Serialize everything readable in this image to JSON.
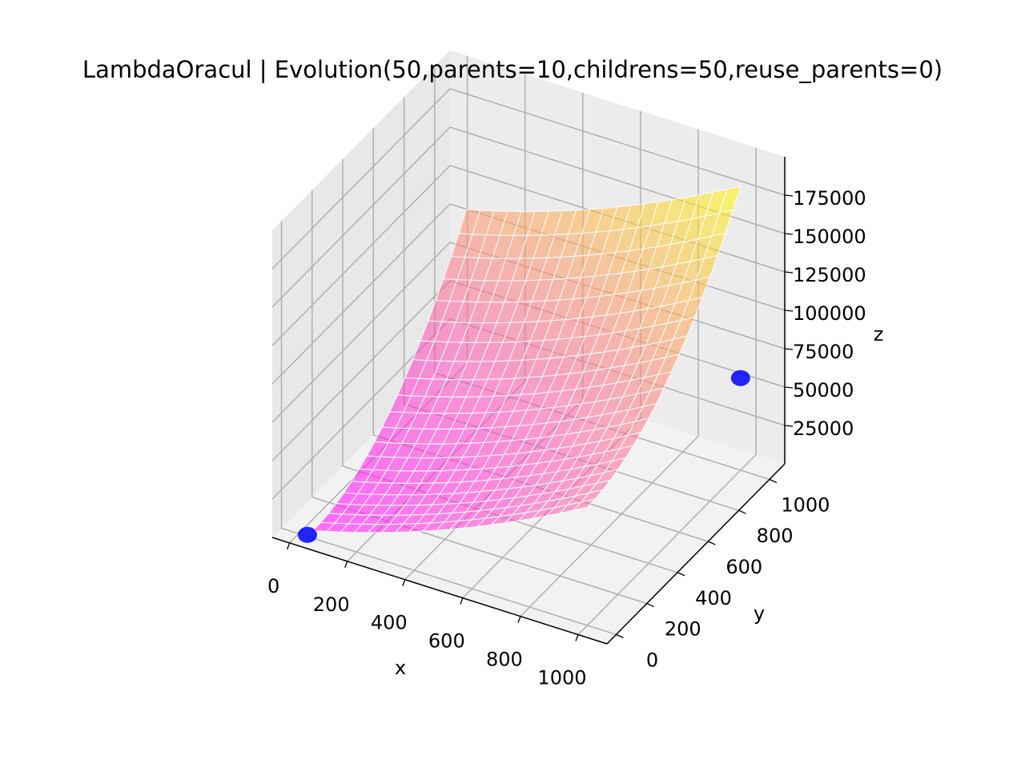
{
  "chart_data": {
    "type": "surface3d",
    "title": "LambdaOracul | Evolution(50,parents=10,childrens=50,reuse_parents=0)",
    "xlabel": "x",
    "ylabel": "y",
    "zlabel": "z",
    "x_ticks": [
      0,
      200,
      400,
      600,
      800,
      1000
    ],
    "y_ticks": [
      0,
      200,
      400,
      600,
      800,
      1000
    ],
    "z_ticks": [
      25000,
      50000,
      75000,
      100000,
      125000,
      150000,
      175000
    ],
    "xlim": [
      -60,
      1100
    ],
    "ylim": [
      -60,
      1100
    ],
    "zlim": [
      0,
      200000
    ],
    "colormap": "spring",
    "pane_color": "#f2f2f2",
    "grid_color": "#b0b0b0",
    "surface_grid_color": "#ffffff",
    "marker_color": "#0000ff",
    "surface": {
      "x_range": [
        50,
        1000
      ],
      "y_range": [
        0,
        1000
      ],
      "z_min": 5000,
      "z_max": 185000
    },
    "markers": [
      {
        "x": 30,
        "y": 0,
        "z": 1000
      },
      {
        "x": 1000,
        "y": 1000,
        "z": 60000
      }
    ]
  }
}
